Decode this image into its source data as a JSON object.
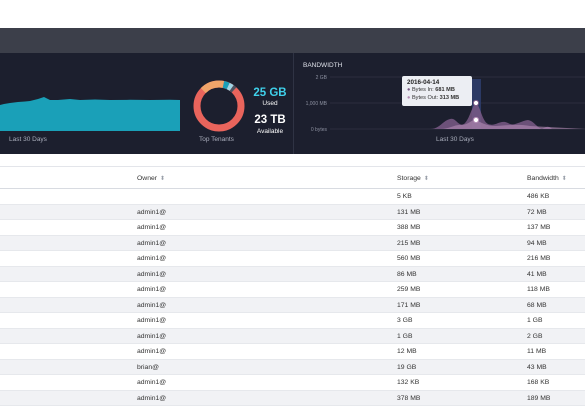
{
  "dashboard": {
    "storage_caption": "Last 30 Days",
    "top_tenants_caption": "Top Tenants",
    "used_value": "25 GB",
    "used_label": "Used",
    "available_value": "23 TB",
    "available_label": "Available",
    "colors": {
      "teal": "#1aa0b8",
      "coral": "#e9645c",
      "used_text": "#3fd0ea"
    }
  },
  "bandwidth": {
    "title": "BANDWIDTH",
    "caption": "Last 30 Days",
    "y_ticks": [
      "2 GB",
      "1,000 MB",
      "0 bytes"
    ],
    "tooltip": {
      "date": "2016-04-14",
      "bytes_in": "681 MB",
      "bytes_out": "313 MB",
      "bytes_in_label": "Bytes In:",
      "bytes_out_label": "Bytes Out:"
    }
  },
  "table": {
    "headers": {
      "owner": "Owner",
      "storage": "Storage",
      "bandwidth": "Bandwidth"
    },
    "rows": [
      {
        "owner": "",
        "storage": "5 KB",
        "bandwidth": "486 KB"
      },
      {
        "owner": "admin1@",
        "storage": "131 MB",
        "bandwidth": "72 MB"
      },
      {
        "owner": "admin1@",
        "storage": "388 MB",
        "bandwidth": "137 MB"
      },
      {
        "owner": "admin1@",
        "storage": "215 MB",
        "bandwidth": "94 MB"
      },
      {
        "owner": "admin1@",
        "storage": "560 MB",
        "bandwidth": "216 MB"
      },
      {
        "owner": "admin1@",
        "storage": "86 MB",
        "bandwidth": "41 MB"
      },
      {
        "owner": "admin1@",
        "storage": "259 MB",
        "bandwidth": "118 MB"
      },
      {
        "owner": "admin1@",
        "storage": "171 MB",
        "bandwidth": "68 MB"
      },
      {
        "owner": "admin1@",
        "storage": "3 GB",
        "bandwidth": "1 GB"
      },
      {
        "owner": "admin1@",
        "storage": "1 GB",
        "bandwidth": "2 GB"
      },
      {
        "owner": "admin1@",
        "storage": "12 MB",
        "bandwidth": "11 MB"
      },
      {
        "owner": "brian@",
        "storage": "19 GB",
        "bandwidth": "43 MB"
      },
      {
        "owner": "admin1@",
        "storage": "132 KB",
        "bandwidth": "168 KB"
      },
      {
        "owner": "admin1@",
        "storage": "378 MB",
        "bandwidth": "189 MB"
      }
    ]
  }
}
